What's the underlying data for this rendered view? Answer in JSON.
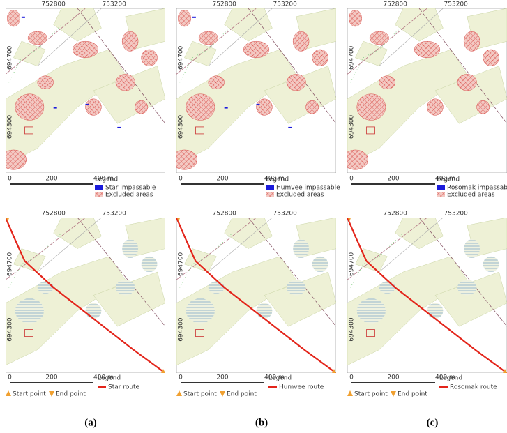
{
  "panels": [
    {
      "x_ticks": [
        "752800",
        "753200"
      ],
      "y_ticks": [
        "694700",
        "694300"
      ],
      "scale_labels": [
        "0",
        "200",
        "400 m"
      ],
      "legend_title": "Legend",
      "legend_items": [
        "Star impassable",
        "Excluded areas"
      ]
    },
    {
      "x_ticks": [
        "752800",
        "753200"
      ],
      "y_ticks": [
        "694700",
        "694300"
      ],
      "scale_labels": [
        "0",
        "200",
        "400 m"
      ],
      "legend_title": "Legend",
      "legend_items": [
        "Humvee impassable",
        "Excluded areas"
      ]
    },
    {
      "x_ticks": [
        "752800",
        "753200"
      ],
      "y_ticks": [
        "694700",
        "694300"
      ],
      "scale_labels": [
        "0",
        "200",
        "400 m"
      ],
      "legend_title": "Legend",
      "legend_items": [
        "Rosomak impassable",
        "Excluded areas"
      ]
    },
    {
      "x_ticks": [
        "752800",
        "753200"
      ],
      "y_ticks": [
        "694700",
        "694300"
      ],
      "scale_labels": [
        "0",
        "200",
        "400 m"
      ],
      "legend_title": "Legend",
      "legend_items": [
        "Start point",
        "End point",
        "Star route"
      ]
    },
    {
      "x_ticks": [
        "752800",
        "753200"
      ],
      "y_ticks": [
        "694700",
        "694300"
      ],
      "scale_labels": [
        "0",
        "200",
        "400 m"
      ],
      "legend_title": "Legend",
      "legend_items": [
        "Start point",
        "End point",
        "Humvee route"
      ]
    },
    {
      "x_ticks": [
        "752800",
        "753200"
      ],
      "y_ticks": [
        "694700",
        "694300"
      ],
      "scale_labels": [
        "0",
        "200",
        "400 m"
      ],
      "legend_title": "Legend",
      "legend_items": [
        "Start point",
        "End point",
        "Rosomak route"
      ]
    }
  ],
  "captions": [
    "(a)",
    "(b)",
    "(c)"
  ]
}
